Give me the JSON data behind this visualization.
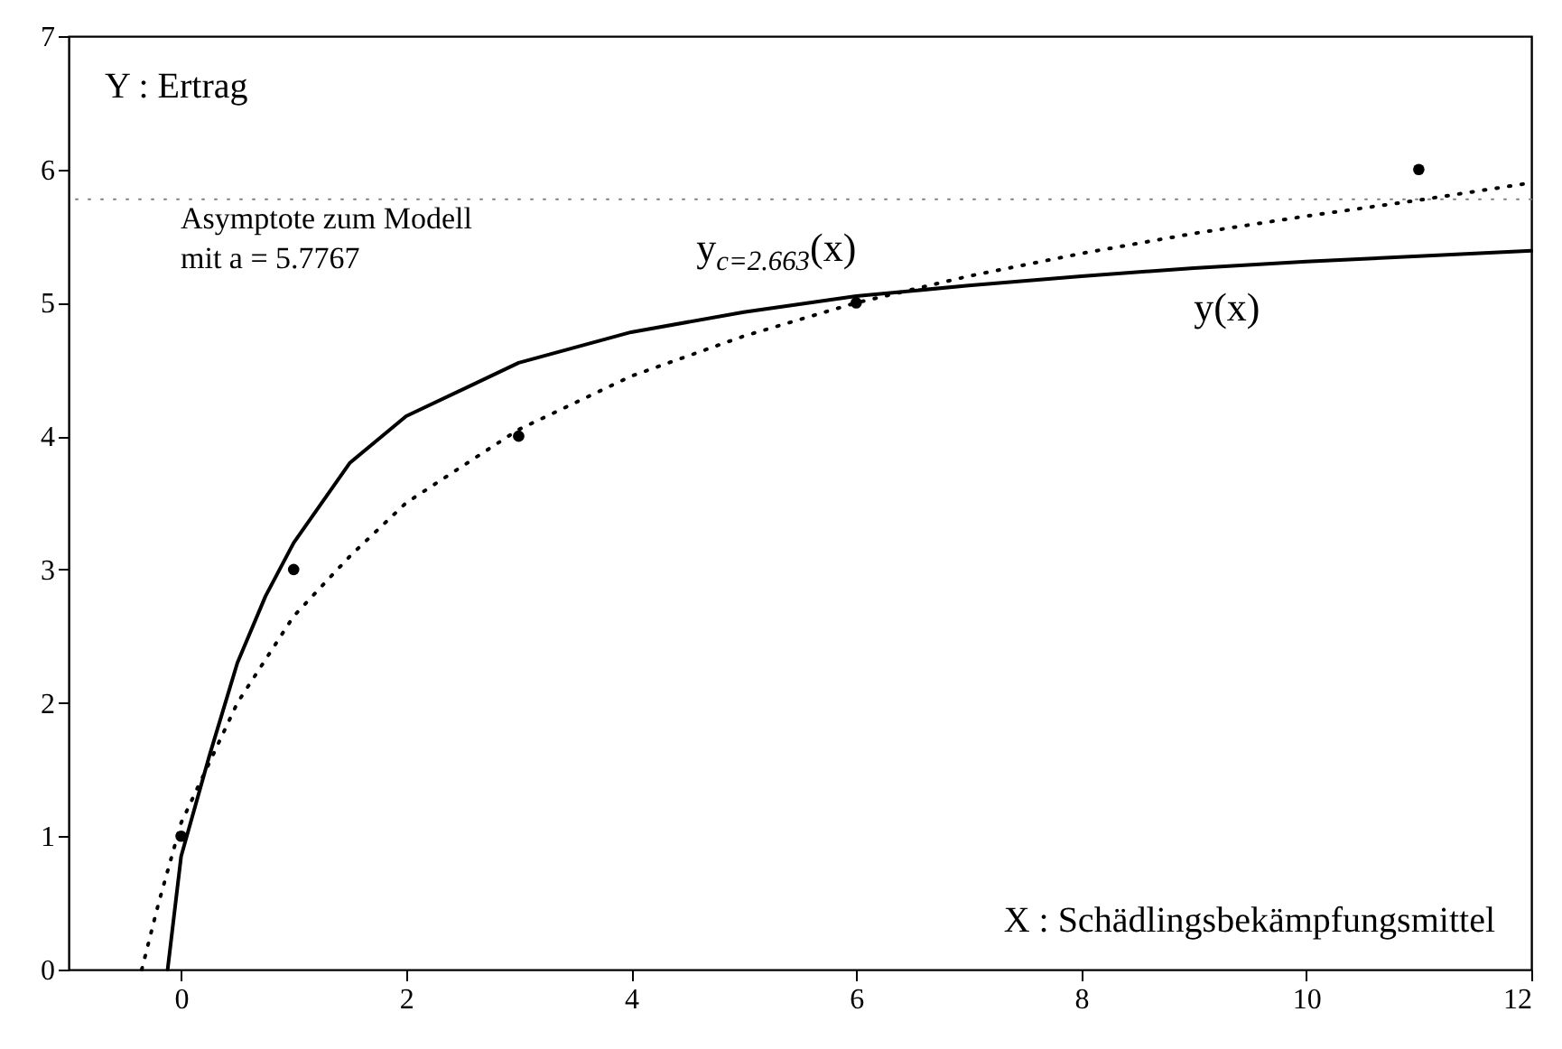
{
  "chart_data": {
    "type": "scatter",
    "annotations": [
      "Y : Ertrag",
      "X : Schädlingsbekämpfungsmittel"
    ],
    "xlim": [
      -1,
      12
    ],
    "ylim": [
      0,
      7
    ],
    "xticks": [
      0,
      2,
      4,
      6,
      8,
      10,
      12
    ],
    "yticks": [
      0,
      1,
      2,
      3,
      4,
      5,
      6,
      7
    ],
    "grid": false,
    "ref_lines": [
      {
        "axis": "y",
        "value": 5.7767,
        "label": "Asymptote zum Modell\nmit a = 5.7767",
        "color": "#808080",
        "line_style": "dotted"
      }
    ],
    "series": [
      {
        "type": "scatter",
        "color": "#000000",
        "marker": "circle",
        "x": [
          0,
          1,
          3,
          6,
          11
        ],
        "values": [
          1,
          3,
          4,
          5,
          6
        ]
      },
      {
        "type": "line",
        "name": "y(x)",
        "color": "#000000",
        "marker": "none",
        "line_style": "solid",
        "x": [
          -0.12,
          0,
          0.25,
          0.5,
          0.75,
          1,
          1.5,
          2,
          3,
          4,
          5,
          6,
          7,
          8,
          9,
          10,
          11,
          12
        ],
        "values": [
          0,
          0.85,
          1.6,
          2.3,
          2.8,
          3.2,
          3.8,
          4.15,
          4.55,
          4.78,
          4.93,
          5.05,
          5.13,
          5.2,
          5.26,
          5.31,
          5.35,
          5.39
        ]
      },
      {
        "type": "line",
        "name": "y$_{c=2.663}$(x)",
        "color": "#000000",
        "marker": "none",
        "line_style": "dotted",
        "x": [
          -0.35,
          -0.2,
          0,
          0.5,
          1,
          1.5,
          2,
          3,
          4,
          5,
          6,
          7,
          8,
          9,
          10,
          11,
          12
        ],
        "values": [
          0,
          0.5,
          1.1,
          2.0,
          2.65,
          3.1,
          3.5,
          4.05,
          4.45,
          4.75,
          5.0,
          5.2,
          5.37,
          5.52,
          5.65,
          5.77,
          5.9
        ]
      }
    ]
  }
}
